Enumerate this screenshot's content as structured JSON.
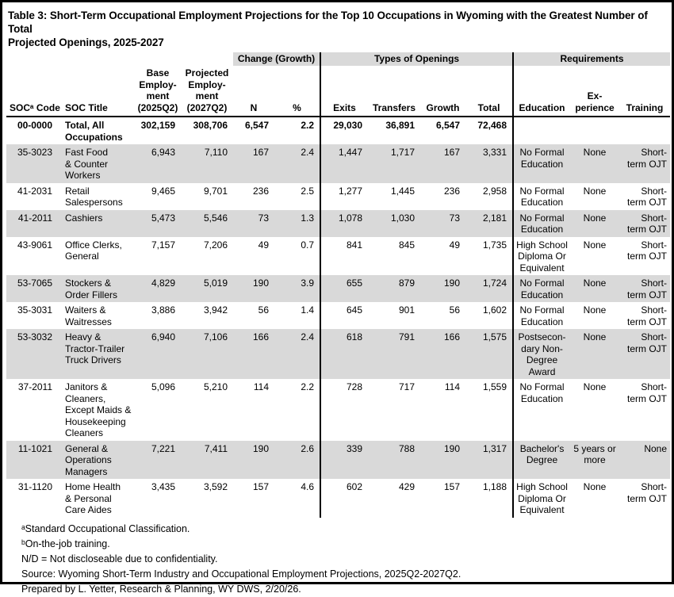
{
  "title": "Table 3: Short-Term Occupational Employment Projections for the Top 10 Occupations in Wyoming with the Greatest Number of Total\nProjected Openings, 2025-2027",
  "colors": {
    "shaded_row": "#D9D9D9",
    "group_header_bg": "#D9D9D9",
    "border": "#000000",
    "text": "#000000"
  },
  "table": {
    "group_headers": [
      {
        "label": "Change (Growth)"
      },
      {
        "label": "Types of Openings"
      },
      {
        "label": "Requirements"
      }
    ],
    "column_headers": [
      "SOCᵃ Code",
      "SOC Title",
      "Base\nEmploy-\nment\n(2025Q2)",
      "Projected\nEmploy-\nment\n(2027Q2)",
      "N",
      "%",
      "Exits",
      "Transfers",
      "Growth",
      "Total",
      "Education",
      "Ex-\nperience",
      "Training"
    ],
    "rows": [
      {
        "soc_code": "00-0000",
        "soc_title": "Total, All\nOccupations",
        "base": "302,159",
        "projected": "308,706",
        "n": "6,547",
        "pct": "2.2",
        "exits": "29,030",
        "transfers": "36,891",
        "growth": "6,547",
        "total": "72,468",
        "education": "",
        "experience": "",
        "training": ""
      },
      {
        "soc_code": "35-3023",
        "soc_title": "Fast Food\n& Counter\nWorkers",
        "base": "6,943",
        "projected": "7,110",
        "n": "167",
        "pct": "2.4",
        "exits": "1,447",
        "transfers": "1,717",
        "growth": "167",
        "total": "3,331",
        "education": "No Formal\nEducation",
        "experience": "None",
        "training": "Short-\nterm OJT"
      },
      {
        "soc_code": "41-2031",
        "soc_title": "Retail\nSalespersons",
        "base": "9,465",
        "projected": "9,701",
        "n": "236",
        "pct": "2.5",
        "exits": "1,277",
        "transfers": "1,445",
        "growth": "236",
        "total": "2,958",
        "education": "No Formal\nEducation",
        "experience": "None",
        "training": "Short-\nterm OJT"
      },
      {
        "soc_code": "41-2011",
        "soc_title": "Cashiers",
        "base": "5,473",
        "projected": "5,546",
        "n": "73",
        "pct": "1.3",
        "exits": "1,078",
        "transfers": "1,030",
        "growth": "73",
        "total": "2,181",
        "education": "No Formal\nEducation",
        "experience": "None",
        "training": "Short-\nterm OJT"
      },
      {
        "soc_code": "43-9061",
        "soc_title": "Office Clerks,\nGeneral",
        "base": "7,157",
        "projected": "7,206",
        "n": "49",
        "pct": "0.7",
        "exits": "841",
        "transfers": "845",
        "growth": "49",
        "total": "1,735",
        "education": "High School\nDiploma Or\nEquivalent",
        "experience": "None",
        "training": "Short-\nterm OJT"
      },
      {
        "soc_code": "53-7065",
        "soc_title": "Stockers &\nOrder Fillers",
        "base": "4,829",
        "projected": "5,019",
        "n": "190",
        "pct": "3.9",
        "exits": "655",
        "transfers": "879",
        "growth": "190",
        "total": "1,724",
        "education": "No Formal\nEducation",
        "experience": "None",
        "training": "Short-\nterm OJT"
      },
      {
        "soc_code": "35-3031",
        "soc_title": "Waiters &\nWaitresses",
        "base": "3,886",
        "projected": "3,942",
        "n": "56",
        "pct": "1.4",
        "exits": "645",
        "transfers": "901",
        "growth": "56",
        "total": "1,602",
        "education": "No Formal\nEducation",
        "experience": "None",
        "training": "Short-\nterm OJT"
      },
      {
        "soc_code": "53-3032",
        "soc_title": "Heavy &\nTractor-Trailer\nTruck Drivers",
        "base": "6,940",
        "projected": "7,106",
        "n": "166",
        "pct": "2.4",
        "exits": "618",
        "transfers": "791",
        "growth": "166",
        "total": "1,575",
        "education": "Postsecon-\ndary Non-\nDegree\nAward",
        "experience": "None",
        "training": "Short-\nterm OJT"
      },
      {
        "soc_code": "37-2011",
        "soc_title": "Janitors &\nCleaners,\nExcept Maids &\nHousekeeping\nCleaners",
        "base": "5,096",
        "projected": "5,210",
        "n": "114",
        "pct": "2.2",
        "exits": "728",
        "transfers": "717",
        "growth": "114",
        "total": "1,559",
        "education": "No Formal\nEducation",
        "experience": "None",
        "training": "Short-\nterm OJT"
      },
      {
        "soc_code": "11-1021",
        "soc_title": "General &\nOperations\nManagers",
        "base": "7,221",
        "projected": "7,411",
        "n": "190",
        "pct": "2.6",
        "exits": "339",
        "transfers": "788",
        "growth": "190",
        "total": "1,317",
        "education": "Bachelor's\nDegree",
        "experience": "5 years or\nmore",
        "training": "None"
      },
      {
        "soc_code": "31-1120",
        "soc_title": "Home Health\n& Personal\nCare Aides",
        "base": "3,435",
        "projected": "3,592",
        "n": "157",
        "pct": "4.6",
        "exits": "602",
        "transfers": "429",
        "growth": "157",
        "total": "1,188",
        "education": "High School\nDiploma Or\nEquivalent",
        "experience": "None",
        "training": "Short-\nterm OJT"
      }
    ]
  },
  "footnotes": [
    "ᵃStandard Occupational Classification.",
    "ᵇOn-the-job training.",
    "N/D = Not discloseable due to confidentiality.",
    "Source: Wyoming Short-Term Industry and Occupational Employment Projections, 2025Q2-2027Q2.",
    "Prepared by L. Yetter, Research & Planning, WY DWS, 2/20/26."
  ]
}
